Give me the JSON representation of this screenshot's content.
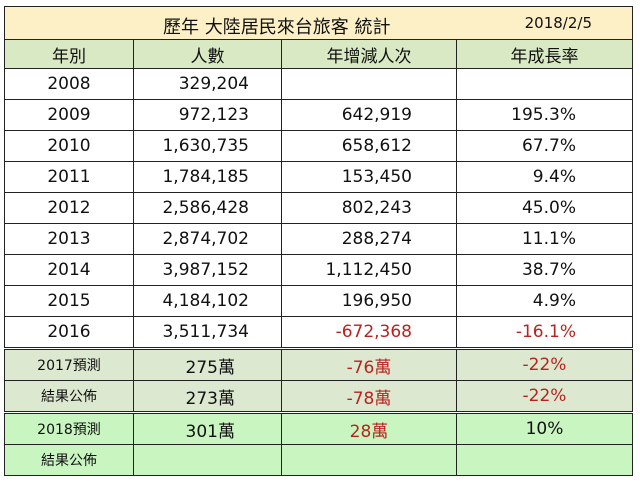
{
  "title": "歷年 大陸居民來台旅客  統計",
  "date": "2018/2/5",
  "headers": [
    "年別",
    "人數",
    "年增減人次",
    "年成長率"
  ],
  "rows": [
    {
      "year": "2008",
      "count": "329,204",
      "change": "",
      "growth": ""
    },
    {
      "year": "2009",
      "count": "972,123",
      "change": "642,919",
      "growth": "195.3%"
    },
    {
      "year": "2010",
      "count": "1,630,735",
      "change": "658,612",
      "growth": "67.7%"
    },
    {
      "year": "2011",
      "count": "1,784,185",
      "change": "153,450",
      "growth": "9.4%"
    },
    {
      "year": "2012",
      "count": "2,586,428",
      "change": "802,243",
      "growth": "45.0%"
    },
    {
      "year": "2013",
      "count": "2,874,702",
      "change": "288,274",
      "growth": "11.1%"
    },
    {
      "year": "2014",
      "count": "3,987,152",
      "change": "1,112,450",
      "growth": "38.7%"
    },
    {
      "year": "2015",
      "count": "4,184,102",
      "change": "196,950",
      "growth": "4.9%"
    },
    {
      "year": "2016",
      "count": "3,511,734",
      "change": "-672,368",
      "growth": "-16.1%"
    }
  ],
  "forecast": [
    {
      "label": "2017預測",
      "count": "275萬",
      "change": "-76萬",
      "growth": "-22%"
    },
    {
      "label": "結果公佈",
      "count": "273萬",
      "change": "-78萬",
      "growth": "-22%"
    },
    {
      "label": "2018預測",
      "count": "301萬",
      "change": "28萬",
      "growth": "10%"
    },
    {
      "label": "結果公佈",
      "count": "",
      "change": "",
      "growth": ""
    }
  ],
  "colors": {
    "title_bg": "#fdf0c6",
    "header_bg": "#d8e9c3",
    "forecast2017_bg": "#dde8d0",
    "forecast2018_bg": "#c9f5c1",
    "negative_text": "#b8231f"
  }
}
